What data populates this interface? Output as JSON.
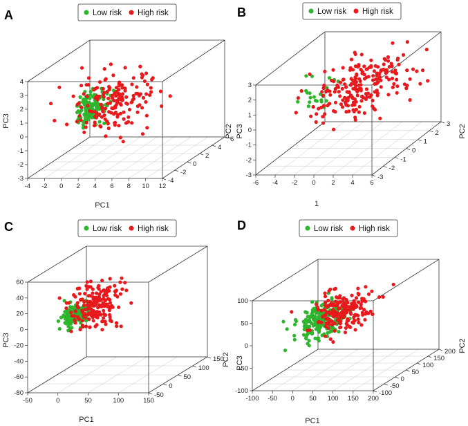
{
  "colors": {
    "low": "#2db52d",
    "high": "#e8191c"
  },
  "legend_labels": {
    "low": "Low risk",
    "high": "High risk"
  },
  "chart_data": [
    {
      "type": "scatter",
      "panel": "A",
      "title": "",
      "xlabel": "PC1",
      "ylabel": "PC2",
      "zlabel": "PC3",
      "x_ticks": [
        "-4",
        "-2",
        "0",
        "2",
        "4",
        "6",
        "8",
        "10",
        "12"
      ],
      "y_ticks": [
        "-4",
        "-2",
        "0",
        "2",
        "4",
        "6"
      ],
      "z_ticks": [
        "-3",
        "-2",
        "-1",
        "0",
        "1",
        "2",
        "3",
        "4"
      ],
      "xlim": [
        -4,
        12
      ],
      "ylim": [
        -5,
        6
      ],
      "zlim": [
        -3,
        4
      ],
      "legend": "top-center",
      "series": [
        {
          "name": "Low risk",
          "color": "#2db52d",
          "count": 140,
          "center": [
            0.2,
            0,
            0.8
          ],
          "spread": [
            0.45,
            1.2,
            0.6
          ],
          "seed": 11
        },
        {
          "name": "High risk",
          "color": "#e8191c",
          "count": 170,
          "center": [
            2.6,
            0,
            1.2
          ],
          "spread": [
            2.4,
            1.7,
            1.05
          ],
          "seed": 23
        }
      ]
    },
    {
      "type": "scatter",
      "panel": "B",
      "title": "",
      "xlabel": "1",
      "ylabel": "PC2",
      "zlabel": "PC3",
      "x_ticks": [
        "-6",
        "-4",
        "-2",
        "0",
        "2",
        "4",
        "6"
      ],
      "y_ticks": [
        "-3",
        "-2",
        "-1",
        "0",
        "1",
        "2",
        "3"
      ],
      "z_ticks": [
        "-3",
        "-2",
        "-1",
        "0",
        "1",
        "2",
        "3"
      ],
      "xlim": [
        -6,
        6
      ],
      "ylim": [
        -4,
        4
      ],
      "zlim": [
        -3,
        3
      ],
      "legend": "top-center",
      "series": [
        {
          "name": "Low risk",
          "color": "#2db52d",
          "count": 22,
          "center": [
            -3.5,
            0,
            0.6
          ],
          "spread": [
            1.1,
            1.0,
            0.55
          ],
          "seed": 31
        },
        {
          "name": "High risk",
          "color": "#e8191c",
          "count": 220,
          "center": [
            1.2,
            0,
            1.1
          ],
          "spread": [
            1.9,
            1.6,
            0.8
          ],
          "seed": 47
        }
      ]
    },
    {
      "type": "scatter",
      "panel": "C",
      "title": "",
      "xlabel": "PC1",
      "ylabel": "PC2",
      "zlabel": "PC3",
      "x_ticks": [
        "-50",
        "0",
        "50",
        "100",
        "150"
      ],
      "y_ticks": [
        "-50",
        "0",
        "50",
        "100",
        "150"
      ],
      "z_ticks": [
        "-80",
        "-60",
        "-40",
        "-20",
        "0",
        "20",
        "40",
        "60"
      ],
      "xlim": [
        -50,
        150
      ],
      "ylim": [
        -80,
        150
      ],
      "zlim": [
        -80,
        60
      ],
      "legend": "top-center",
      "series": [
        {
          "name": "Low risk",
          "color": "#2db52d",
          "count": 150,
          "center": [
            -5,
            0,
            3
          ],
          "spread": [
            10,
            22,
            6
          ],
          "seed": 53
        },
        {
          "name": "High risk",
          "color": "#e8191c",
          "count": 180,
          "center": [
            20,
            10,
            12
          ],
          "spread": [
            18,
            25,
            14
          ],
          "seed": 67
        }
      ]
    },
    {
      "type": "scatter",
      "panel": "D",
      "title": "",
      "xlabel": "PC1",
      "ylabel": "PC2",
      "zlabel": "PC3",
      "x_ticks": [
        "-100",
        "-50",
        "0",
        "50",
        "100",
        "150",
        "200"
      ],
      "y_ticks": [
        "-100",
        "-50",
        "0",
        "50",
        "100",
        "150",
        "200"
      ],
      "z_ticks": [
        "-100",
        "-50",
        "0",
        "50",
        "100"
      ],
      "xlim": [
        -100,
        200
      ],
      "ylim": [
        -130,
        200
      ],
      "zlim": [
        -100,
        100
      ],
      "legend": "top-center",
      "series": [
        {
          "name": "Low risk",
          "color": "#2db52d",
          "count": 230,
          "center": [
            5,
            0,
            20
          ],
          "spread": [
            24,
            40,
            18
          ],
          "seed": 71
        },
        {
          "name": "High risk",
          "color": "#e8191c",
          "count": 190,
          "center": [
            55,
            20,
            35
          ],
          "spread": [
            34,
            45,
            20
          ],
          "seed": 89
        }
      ]
    }
  ]
}
